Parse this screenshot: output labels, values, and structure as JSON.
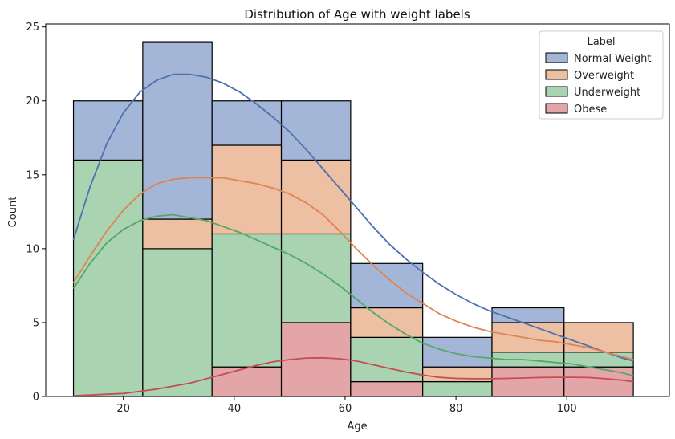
{
  "chart_data": {
    "type": "bar",
    "stacked": true,
    "title": "Distribution of Age with weight labels",
    "xlabel": "Age",
    "ylabel": "Count",
    "xlim": [
      6,
      118.5
    ],
    "ylim": [
      0,
      25.2
    ],
    "xticks": [
      20,
      40,
      60,
      80,
      100
    ],
    "yticks": [
      0,
      5,
      10,
      15,
      20,
      25
    ],
    "bin_edges": [
      11,
      23.5,
      36,
      48.5,
      61,
      74,
      86.5,
      99.5,
      112
    ],
    "legend": {
      "title": "Label",
      "placement": "top-right"
    },
    "series": [
      {
        "name": "Obese",
        "color": "#dd8452",
        "bar_color": "#e4a5a8",
        "values": [
          0,
          0,
          2,
          5,
          1,
          0,
          2,
          2
        ]
      },
      {
        "name": "Underweight",
        "bar_color": "#aad3b1",
        "values": [
          16,
          10,
          9,
          6,
          3,
          1,
          1,
          1
        ]
      },
      {
        "name": "Overweight",
        "bar_color": "#edbfa3",
        "values": [
          0,
          2,
          6,
          5,
          2,
          1,
          2,
          2
        ]
      },
      {
        "name": "Normal Weight",
        "bar_color": "#a4b6d8",
        "values": [
          4,
          12,
          3,
          4,
          3,
          2,
          1,
          0
        ]
      }
    ],
    "kde": [
      {
        "name": "Normal Weight",
        "color": "#4c72b0",
        "points": [
          [
            11,
            10.6
          ],
          [
            14,
            14.2
          ],
          [
            17,
            17.1
          ],
          [
            20,
            19.2
          ],
          [
            23,
            20.6
          ],
          [
            26,
            21.4
          ],
          [
            29,
            21.8
          ],
          [
            32,
            21.8
          ],
          [
            35,
            21.6
          ],
          [
            38,
            21.2
          ],
          [
            41,
            20.6
          ],
          [
            44,
            19.8
          ],
          [
            47,
            18.9
          ],
          [
            50,
            17.9
          ],
          [
            53,
            16.7
          ],
          [
            56,
            15.4
          ],
          [
            59,
            14.1
          ],
          [
            62,
            12.8
          ],
          [
            65,
            11.5
          ],
          [
            68,
            10.3
          ],
          [
            71,
            9.3
          ],
          [
            74,
            8.4
          ],
          [
            77,
            7.6
          ],
          [
            80,
            6.9
          ],
          [
            83,
            6.3
          ],
          [
            86,
            5.8
          ],
          [
            89,
            5.4
          ],
          [
            92,
            5.0
          ],
          [
            95,
            4.6
          ],
          [
            98,
            4.2
          ],
          [
            101,
            3.8
          ],
          [
            104,
            3.4
          ],
          [
            107,
            3.0
          ],
          [
            110,
            2.6
          ],
          [
            112,
            2.4
          ]
        ]
      },
      {
        "name": "Overweight",
        "color": "#dd8452",
        "points": [
          [
            11,
            7.7
          ],
          [
            14,
            9.5
          ],
          [
            17,
            11.2
          ],
          [
            20,
            12.6
          ],
          [
            23,
            13.7
          ],
          [
            26,
            14.4
          ],
          [
            29,
            14.7
          ],
          [
            32,
            14.8
          ],
          [
            35,
            14.8
          ],
          [
            38,
            14.8
          ],
          [
            41,
            14.6
          ],
          [
            44,
            14.4
          ],
          [
            47,
            14.1
          ],
          [
            50,
            13.7
          ],
          [
            53,
            13.1
          ],
          [
            56,
            12.3
          ],
          [
            59,
            11.2
          ],
          [
            62,
            10.0
          ],
          [
            65,
            8.9
          ],
          [
            68,
            7.9
          ],
          [
            71,
            7.0
          ],
          [
            74,
            6.3
          ],
          [
            77,
            5.6
          ],
          [
            80,
            5.1
          ],
          [
            83,
            4.7
          ],
          [
            86,
            4.4
          ],
          [
            89,
            4.2
          ],
          [
            92,
            4.0
          ],
          [
            95,
            3.8
          ],
          [
            98,
            3.7
          ],
          [
            101,
            3.5
          ],
          [
            104,
            3.3
          ],
          [
            107,
            3.0
          ],
          [
            110,
            2.7
          ],
          [
            112,
            2.5
          ]
        ]
      },
      {
        "name": "Underweight",
        "color": "#55a868",
        "points": [
          [
            11,
            7.3
          ],
          [
            14,
            9.0
          ],
          [
            17,
            10.4
          ],
          [
            20,
            11.3
          ],
          [
            23,
            11.9
          ],
          [
            26,
            12.2
          ],
          [
            29,
            12.3
          ],
          [
            32,
            12.1
          ],
          [
            35,
            11.9
          ],
          [
            38,
            11.5
          ],
          [
            41,
            11.1
          ],
          [
            44,
            10.6
          ],
          [
            47,
            10.1
          ],
          [
            50,
            9.6
          ],
          [
            53,
            9.0
          ],
          [
            56,
            8.3
          ],
          [
            59,
            7.5
          ],
          [
            62,
            6.6
          ],
          [
            65,
            5.7
          ],
          [
            68,
            4.9
          ],
          [
            71,
            4.2
          ],
          [
            74,
            3.6
          ],
          [
            77,
            3.2
          ],
          [
            80,
            2.9
          ],
          [
            83,
            2.7
          ],
          [
            86,
            2.6
          ],
          [
            89,
            2.5
          ],
          [
            92,
            2.5
          ],
          [
            95,
            2.4
          ],
          [
            98,
            2.3
          ],
          [
            101,
            2.2
          ],
          [
            104,
            2.0
          ],
          [
            107,
            1.8
          ],
          [
            110,
            1.6
          ],
          [
            112,
            1.4
          ]
        ]
      },
      {
        "name": "Obese",
        "color": "#c44e52",
        "points": [
          [
            11,
            0.05
          ],
          [
            14,
            0.1
          ],
          [
            17,
            0.15
          ],
          [
            20,
            0.2
          ],
          [
            23,
            0.35
          ],
          [
            26,
            0.5
          ],
          [
            29,
            0.7
          ],
          [
            32,
            0.9
          ],
          [
            35,
            1.2
          ],
          [
            38,
            1.5
          ],
          [
            41,
            1.8
          ],
          [
            44,
            2.1
          ],
          [
            47,
            2.35
          ],
          [
            50,
            2.5
          ],
          [
            53,
            2.6
          ],
          [
            56,
            2.62
          ],
          [
            59,
            2.55
          ],
          [
            62,
            2.4
          ],
          [
            65,
            2.15
          ],
          [
            68,
            1.9
          ],
          [
            71,
            1.65
          ],
          [
            74,
            1.45
          ],
          [
            77,
            1.3
          ],
          [
            80,
            1.22
          ],
          [
            83,
            1.2
          ],
          [
            86,
            1.2
          ],
          [
            89,
            1.22
          ],
          [
            92,
            1.25
          ],
          [
            95,
            1.28
          ],
          [
            98,
            1.3
          ],
          [
            101,
            1.3
          ],
          [
            104,
            1.28
          ],
          [
            107,
            1.2
          ],
          [
            110,
            1.1
          ],
          [
            112,
            1.0
          ]
        ]
      }
    ],
    "legend_order": [
      {
        "name": "Normal Weight",
        "color": "#a4b6d8"
      },
      {
        "name": "Overweight",
        "color": "#edbfa3"
      },
      {
        "name": "Underweight",
        "color": "#aad3b1"
      },
      {
        "name": "Obese",
        "color": "#e4a5a8"
      }
    ]
  }
}
